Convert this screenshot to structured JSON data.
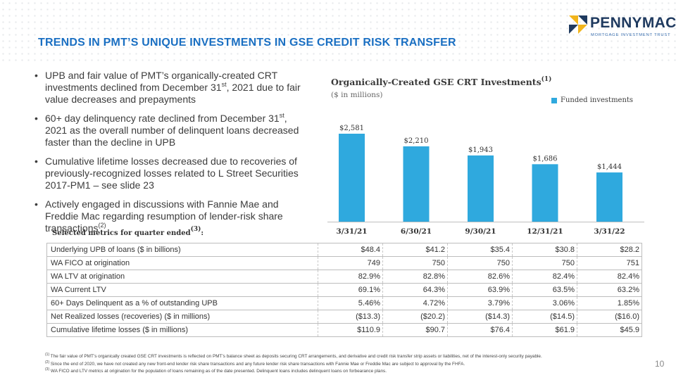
{
  "logo": {
    "name": "PENNYMAC",
    "sub": "MORTGAGE INVESTMENT TRUST"
  },
  "title": "TRENDS IN PMT’S UNIQUE INVESTMENTS IN GSE CREDIT RISK TRANSFER",
  "bullets": [
    {
      "pre": "UPB and fair value of PMT’s organically-created CRT investments declined from December 31",
      "sup": "st",
      "post": ", 2021 due to fair value decreases and prepayments"
    },
    {
      "pre": "60+ day delinquency rate declined from December 31",
      "sup": "st",
      "post": ", 2021 as the overall number of delinquent loans decreased faster than the decline in UPB"
    },
    {
      "pre": "Cumulative lifetime losses decreased due to recoveries of previously-recognized losses related to L Street Securities 2017-PM1 – see slide 23",
      "sup": "",
      "post": ""
    },
    {
      "pre": "Actively engaged in discussions with Fannie Mae and Freddie Mac regarding resumption of lender-risk share transactions",
      "sup": "(2)",
      "post": ""
    }
  ],
  "chart_data": {
    "type": "bar",
    "title": "Organically-Created GSE CRT Investments",
    "title_sup": "(1)",
    "subtitle": "($ in millions)",
    "categories": [
      "3/31/21",
      "6/30/21",
      "9/30/21",
      "12/31/21",
      "3/31/22"
    ],
    "series": [
      {
        "name": "Funded investments",
        "values": [
          2581,
          2210,
          1943,
          1686,
          1444
        ],
        "color": "#2fa9de"
      }
    ],
    "data_labels": [
      "$2,581",
      "$2,210",
      "$1,943",
      "$1,686",
      "$1,444"
    ],
    "ylim": [
      0,
      2581
    ],
    "legend_position": "top-right",
    "grid": false
  },
  "metrics": {
    "label": "Selected metrics for quarter ended",
    "label_sup": "(3)",
    "label_suffix": ":",
    "rows": [
      {
        "label": "Underlying UPB of loans ($ in billions)",
        "values": [
          "$48.4",
          "$41.2",
          "$35.4",
          "$30.8",
          "$28.2"
        ]
      },
      {
        "label": "WA FICO at origination",
        "values": [
          "749",
          "750",
          "750",
          "750",
          "751"
        ]
      },
      {
        "label": "WA LTV at origination",
        "values": [
          "82.9%",
          "82.8%",
          "82.6%",
          "82.4%",
          "82.4%"
        ]
      },
      {
        "label": "WA Current LTV",
        "values": [
          "69.1%",
          "64.3%",
          "63.9%",
          "63.5%",
          "63.2%"
        ]
      },
      {
        "label": "60+ Days Delinquent as a % of outstanding UPB",
        "values": [
          "5.46%",
          "4.72%",
          "3.79%",
          "3.06%",
          "1.85%"
        ]
      },
      {
        "label": "Net Realized losses (recoveries) ($ in millions)",
        "values": [
          "($13.3)",
          "($20.2)",
          "($14.3)",
          "($14.5)",
          "($16.0)"
        ]
      },
      {
        "label": "Cumulative lifetime losses ($ in millions)",
        "values": [
          "$110.9",
          "$90.7",
          "$76.4",
          "$61.9",
          "$45.9"
        ]
      }
    ]
  },
  "footnotes": [
    {
      "num": "(1)",
      "text": "The fair value of PMT’s organically created GSE CRT investments is reflected on PMT’s balance sheet as deposits securing CRT arrangements, and derivative and credit risk transfer strip assets or liabilities, net of the interest-only security payable."
    },
    {
      "num": "(2)",
      "text": "Since the end of 2020, we have not created any new front-end lender risk share transactions and any future lender risk share transactions with Fannie Mae or Freddie Mac are subject to approval by the FHFA."
    },
    {
      "num": "(3)",
      "text": "WA FICO and LTV metrics at origination for the population of loans remaining as of the date presented. Delinquent loans includes delinquent loans on forbearance plans."
    }
  ],
  "page_number": "10",
  "colors": {
    "title": "#1a6fc2",
    "bar": "#2fa9de",
    "logo_navy": "#1f3a5f",
    "logo_yellow": "#f2b51c"
  }
}
